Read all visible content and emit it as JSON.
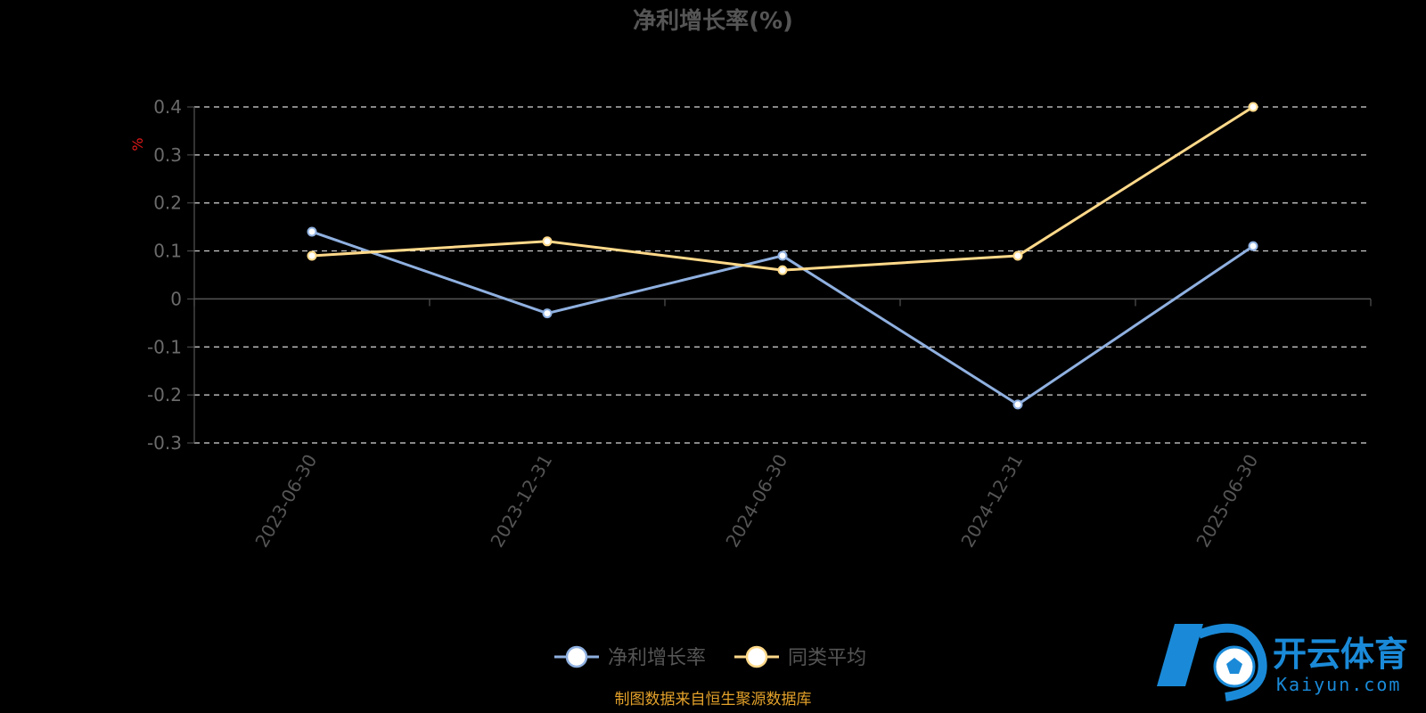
{
  "chart_data": {
    "type": "line",
    "title": "净利增长率(%)",
    "ylabel": "%",
    "categories": [
      "2023-06-30",
      "2023-12-31",
      "2024-06-30",
      "2024-12-31",
      "2025-06-30"
    ],
    "ylim": [
      -0.3,
      0.4
    ],
    "yticks": [
      0.4,
      0.3,
      0.2,
      0.1,
      0,
      -0.1,
      -0.2,
      -0.3
    ],
    "grid": true,
    "legend_position": "bottom-center",
    "series": [
      {
        "name": "净利增长率",
        "values": [
          0.14,
          -0.03,
          0.09,
          -0.22,
          0.11
        ],
        "color": "#8fb0e0"
      },
      {
        "name": "同类平均",
        "values": [
          0.09,
          0.12,
          0.06,
          0.09,
          0.4
        ],
        "color": "#ffd98a"
      }
    ]
  },
  "footer": {
    "source": "制图数据来自恒生聚源数据库"
  },
  "watermark": {
    "brand_cn": "开云体育",
    "brand_en": "Kaiyun.com",
    "logo_icon": "kaiyun-logo-icon"
  }
}
